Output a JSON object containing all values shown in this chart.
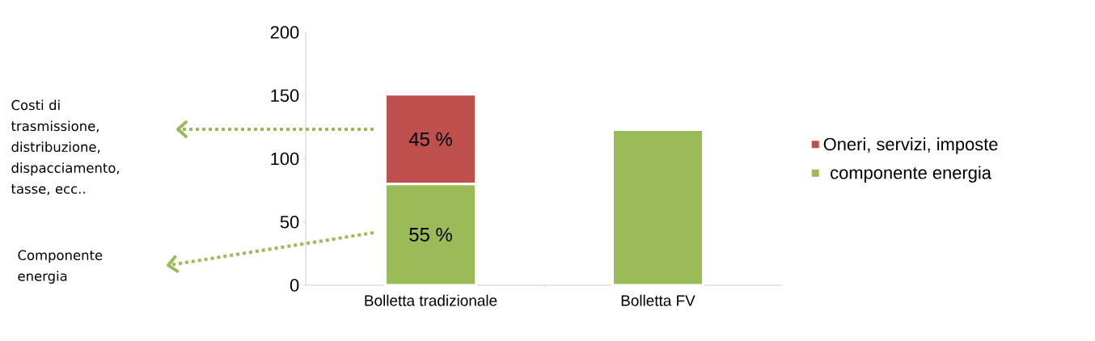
{
  "chart_data": {
    "type": "bar",
    "stacked": true,
    "categories": [
      "Bolletta tradizionale",
      "Bolletta FV"
    ],
    "series": [
      {
        "name": "componente energia",
        "color": "#9bbb59",
        "values": [
          80,
          123
        ]
      },
      {
        "name": "Oneri, servizi, imposte",
        "color": "#c0504d",
        "values": [
          71,
          null
        ]
      }
    ],
    "ylim": [
      0,
      200
    ],
    "yticks": [
      0,
      50,
      100,
      150,
      200
    ],
    "legend": "right",
    "annotations": [
      "45 %",
      "55 %",
      "Costi di trasmissione, distribuzione, dispacciamento, tasse, ecc..",
      "Componente energia"
    ]
  }
}
